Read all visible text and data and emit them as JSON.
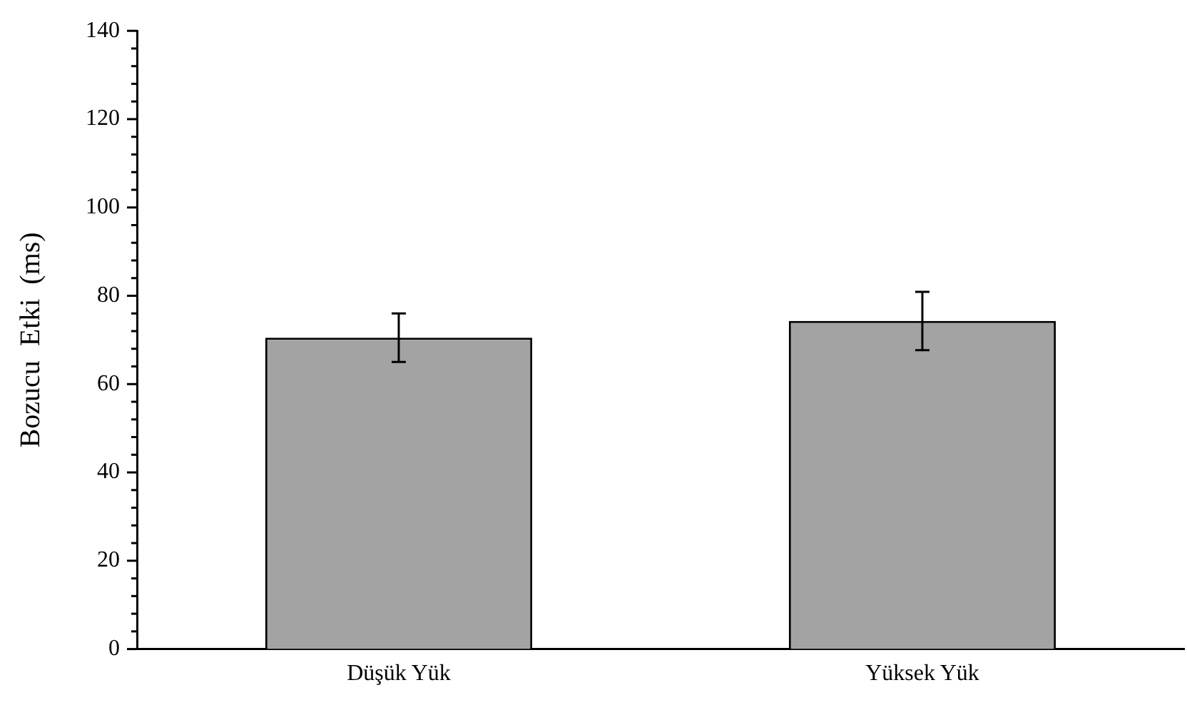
{
  "chart_data": {
    "type": "bar",
    "ylabel": "Bozucu  Etki  (ms)",
    "categories": [
      "Düşük Yük",
      "Yüksek Yük"
    ],
    "values": [
      70.5,
      74.3
    ],
    "errors": [
      5.5,
      6.6
    ],
    "color": "#a3a3a3",
    "ylim": [
      0,
      140
    ],
    "yticks": [
      0,
      {
        "value": 4,
        "label": null
      },
      {
        "value": 8,
        "label": null
      },
      {
        "value": 12,
        "label": null
      },
      {
        "value": 16,
        "label": null
      },
      20,
      {
        "value": 24,
        "label": null
      },
      {
        "value": 28,
        "label": null
      },
      {
        "value": 32,
        "label": null
      },
      {
        "value": 36,
        "label": null
      },
      40,
      {
        "value": 44,
        "label": null
      },
      {
        "value": 48,
        "label": null
      },
      {
        "value": 52,
        "label": null
      },
      {
        "value": 56,
        "label": null
      },
      60,
      {
        "value": 64,
        "label": null
      },
      {
        "value": 68,
        "label": null
      },
      {
        "value": 72,
        "label": null
      },
      {
        "value": 76,
        "label": null
      },
      80,
      {
        "value": 84,
        "label": null
      },
      {
        "value": 88,
        "label": null
      },
      {
        "value": 92,
        "label": null
      },
      {
        "value": 96,
        "label": null
      },
      100,
      {
        "value": 104,
        "label": null
      },
      {
        "value": 108,
        "label": null
      },
      {
        "value": 112,
        "label": null
      },
      {
        "value": 116,
        "label": null
      },
      120,
      {
        "value": 124,
        "label": null
      },
      {
        "value": 128,
        "label": null
      },
      {
        "value": 132,
        "label": null
      },
      {
        "value": 136,
        "label": null
      },
      140
    ],
    "grid": false,
    "legend": false
  }
}
